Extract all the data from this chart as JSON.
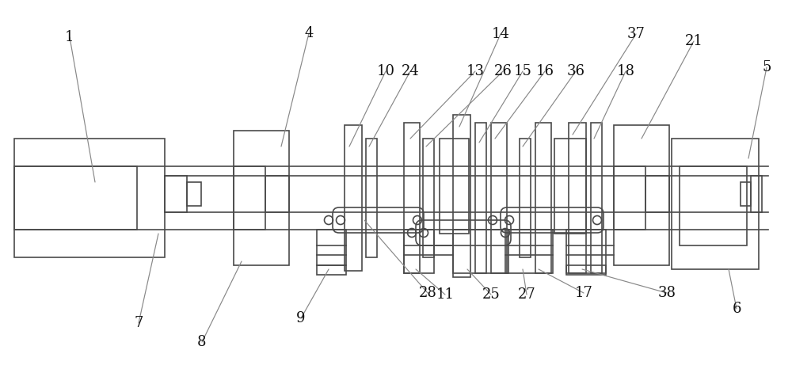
{
  "bg_color": "#ffffff",
  "lc": "#4a4a4a",
  "lw": 1.2,
  "thin_lw": 0.7,
  "figsize": [
    10.0,
    4.9
  ],
  "dpi": 100,
  "label_fontsize": 13,
  "label_color": "#111111"
}
